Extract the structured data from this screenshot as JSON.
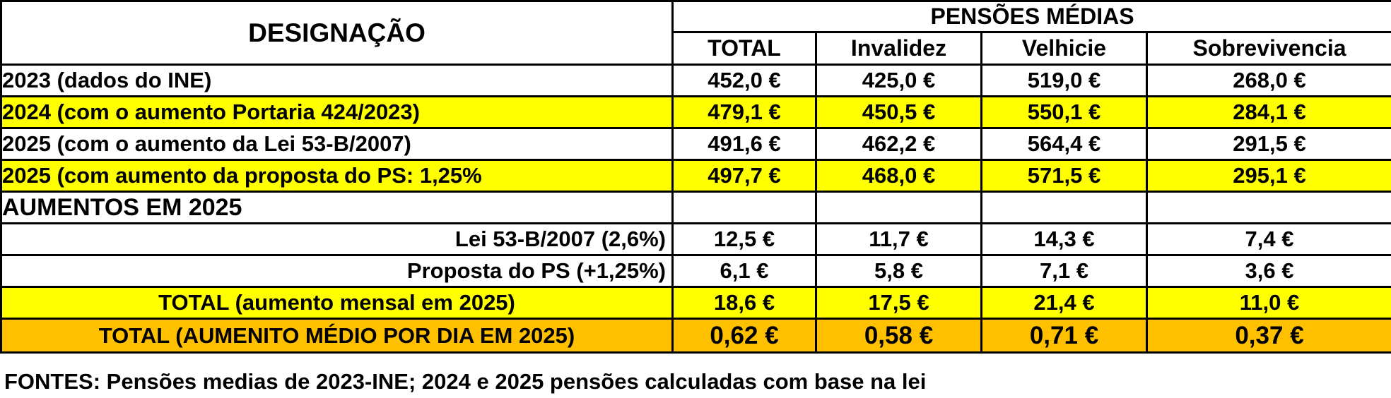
{
  "header": {
    "designacao": "DESIGNAÇÃO",
    "group": "PENSÕES MÉDIAS",
    "columns": [
      "TOTAL",
      "Invalidez",
      "Velhicie",
      "Sobrevivencia"
    ]
  },
  "rows": [
    {
      "label": "2023 (dados do INE)",
      "values": [
        "452,0 €",
        "425,0 €",
        "519,0 €",
        "268,0 €"
      ]
    },
    {
      "label": "2024 (com o aumento Portaria 424/2023)",
      "values": [
        "479,1 €",
        "450,5 €",
        "550,1 €",
        "284,1 €"
      ]
    },
    {
      "label": "2025  (com o aumento da Lei 53-B/2007)",
      "values": [
        "491,6 €",
        "462,2 €",
        "564,4 €",
        "291,5 €"
      ]
    },
    {
      "label": "2025 (com aumento da proposta do PS: 1,25%",
      "values": [
        "497,7 €",
        "468,0 €",
        "571,5 €",
        "295,1 €"
      ]
    },
    {
      "label": "AUMENTOS EM 2025",
      "values": [
        "",
        "",
        "",
        ""
      ]
    },
    {
      "label": "Lei 53-B/2007 (2,6%)",
      "values": [
        "12,5 €",
        "11,7 €",
        "14,3 €",
        "7,4 €"
      ]
    },
    {
      "label": "Proposta do PS (+1,25%)",
      "values": [
        "6,1 €",
        "5,8 €",
        "7,1 €",
        "3,6 €"
      ]
    },
    {
      "label": "TOTAL (aumento mensal em 2025)",
      "values": [
        "18,6 €",
        "17,5 €",
        "21,4 €",
        "11,0 €"
      ]
    },
    {
      "label": "TOTAL (AUMENITO MÉDIO POR DIA EM 2025)",
      "values": [
        "0,62 €",
        "0,58 €",
        "0,71 €",
        "0,37 €"
      ]
    }
  ],
  "source": "FONTES: Pensões medias de 2023-INE; 2024 e 2025 pensões calculadas com base na lei",
  "colors": {
    "highlight_yellow": "#ffff00",
    "highlight_orange": "#ffc000"
  }
}
